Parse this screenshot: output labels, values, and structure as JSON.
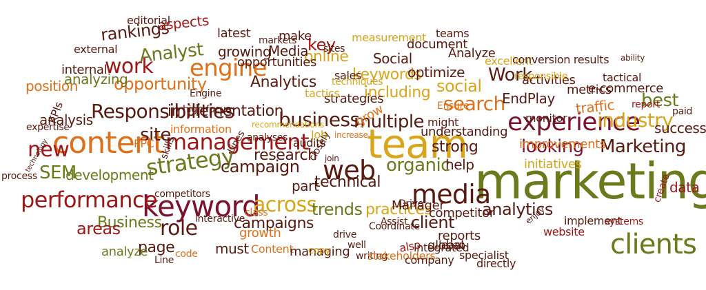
{
  "colors": {
    "dark_red": "#a01717",
    "olive": "#6b7a1c",
    "brown": "#5a1a10",
    "orange": "#e0711b",
    "gold": "#d9a51a",
    "maroon": "#7a1230"
  },
  "words": [
    {
      "text": "marketing",
      "c": "olive"
    },
    {
      "text": "team",
      "c": "gold"
    },
    {
      "text": "content",
      "c": "orange"
    },
    {
      "text": "keyword",
      "c": "maroon"
    },
    {
      "text": "experience",
      "c": "maroon"
    },
    {
      "text": "management",
      "c": "dark_red"
    },
    {
      "text": "strategy",
      "c": "olive"
    },
    {
      "text": "web",
      "c": "brown"
    },
    {
      "text": "media",
      "c": "brown"
    },
    {
      "text": "clients",
      "c": "olive"
    },
    {
      "text": "engine",
      "c": "orange"
    },
    {
      "text": "performance",
      "c": "dark_red"
    },
    {
      "text": "across",
      "c": "gold"
    },
    {
      "text": "search",
      "c": "orange"
    },
    {
      "text": "industry",
      "c": "gold"
    },
    {
      "text": "work",
      "c": "dark_red"
    },
    {
      "text": "Responsibilities",
      "c": "brown"
    },
    {
      "text": "Marketing",
      "c": "brown"
    },
    {
      "text": "new",
      "c": "dark_red"
    },
    {
      "text": "site",
      "c": "brown"
    },
    {
      "text": "best",
      "c": "olive"
    },
    {
      "text": "business",
      "c": "brown"
    },
    {
      "text": "implementation",
      "c": "brown"
    },
    {
      "text": "opportunity",
      "c": "orange"
    },
    {
      "text": "Analyst",
      "c": "olive"
    },
    {
      "text": "organic",
      "c": "olive"
    },
    {
      "text": "multiple",
      "c": "brown"
    },
    {
      "text": "social",
      "c": "gold"
    },
    {
      "text": "looking",
      "c": "maroon"
    },
    {
      "text": "Work",
      "c": "brown"
    },
    {
      "text": "role",
      "c": "brown"
    },
    {
      "text": "online",
      "c": "gold"
    },
    {
      "text": "including",
      "c": "gold"
    },
    {
      "text": "EndPlay",
      "c": "brown"
    },
    {
      "text": "traffic",
      "c": "orange"
    },
    {
      "text": "keywords",
      "c": "gold"
    },
    {
      "text": "campaign",
      "c": "brown"
    },
    {
      "text": "Business",
      "c": "olive"
    },
    {
      "text": "areas",
      "c": "dark_red"
    },
    {
      "text": "trends",
      "c": "olive"
    },
    {
      "text": "analytics",
      "c": "brown"
    },
    {
      "text": "SEM",
      "c": "olive"
    },
    {
      "text": "development",
      "c": "olive"
    },
    {
      "text": "growing",
      "c": "brown"
    },
    {
      "text": "Media",
      "c": "brown"
    },
    {
      "text": "key",
      "c": "dark_red"
    },
    {
      "text": "strong",
      "c": "brown"
    },
    {
      "text": "technical",
      "c": "brown"
    },
    {
      "text": "page",
      "c": "brown"
    },
    {
      "text": "Analytics",
      "c": "brown"
    },
    {
      "text": "research",
      "c": "brown"
    },
    {
      "text": "optimize",
      "c": "brown"
    },
    {
      "text": "rankings",
      "c": "brown"
    },
    {
      "text": "Social",
      "c": "brown"
    },
    {
      "text": "help",
      "c": "brown"
    },
    {
      "text": "success",
      "c": "brown"
    },
    {
      "text": "data",
      "c": "dark_red"
    },
    {
      "text": "client",
      "c": "brown"
    },
    {
      "text": "campaigns",
      "c": "brown"
    },
    {
      "text": "growth",
      "c": "orange"
    },
    {
      "text": "must",
      "c": "brown"
    },
    {
      "text": "part",
      "c": "brown"
    },
    {
      "text": "analysis",
      "c": "brown"
    },
    {
      "text": "position",
      "c": "orange"
    },
    {
      "text": "analyzing",
      "c": "olive"
    },
    {
      "text": "strategies",
      "c": "brown"
    },
    {
      "text": "understanding",
      "c": "brown"
    },
    {
      "text": "improvements",
      "c": "orange"
    },
    {
      "text": "initiatives",
      "c": "gold"
    },
    {
      "text": "practices",
      "c": "gold"
    },
    {
      "text": "Manager",
      "c": "brown"
    },
    {
      "text": "competitor",
      "c": "brown"
    },
    {
      "text": "reports",
      "c": "brown"
    },
    {
      "text": "global",
      "c": "brown"
    },
    {
      "text": "metrics",
      "c": "brown"
    },
    {
      "text": "e-commerce",
      "c": "brown"
    },
    {
      "text": "activities",
      "c": "brown"
    },
    {
      "text": "Analyze",
      "c": "brown"
    },
    {
      "text": "analyze",
      "c": "olive"
    },
    {
      "text": "document",
      "c": "brown"
    },
    {
      "text": "opportunities",
      "c": "brown"
    },
    {
      "text": "latest",
      "c": "brown"
    },
    {
      "text": "aspects",
      "c": "dark_red"
    },
    {
      "text": "make",
      "c": "brown"
    },
    {
      "text": "internal",
      "c": "brown"
    },
    {
      "text": "external",
      "c": "brown"
    },
    {
      "text": "editorial",
      "c": "brown"
    },
    {
      "text": "measurement",
      "c": "gold"
    },
    {
      "text": "teams",
      "c": "brown"
    },
    {
      "text": "markets",
      "c": "brown"
    },
    {
      "text": "sites",
      "c": "brown"
    },
    {
      "text": "sales",
      "c": "brown"
    },
    {
      "text": "techniques",
      "c": "gold"
    },
    {
      "text": "tactics",
      "c": "gold"
    },
    {
      "text": "excellent",
      "c": "gold"
    },
    {
      "text": "conversion results",
      "c": "brown"
    },
    {
      "text": "responsible",
      "c": "gold"
    },
    {
      "text": "tactical",
      "c": "brown"
    },
    {
      "text": "report",
      "c": "dark_red"
    },
    {
      "text": "paid",
      "c": "brown"
    },
    {
      "text": "ability",
      "c": "brown"
    },
    {
      "text": "monitor",
      "c": "brown"
    },
    {
      "text": "Ensure",
      "c": "orange"
    },
    {
      "text": "might",
      "c": "brown"
    },
    {
      "text": "grow",
      "c": "orange"
    },
    {
      "text": "Job",
      "c": "gold"
    },
    {
      "text": "increase",
      "c": "orange"
    },
    {
      "text": "audits",
      "c": "brown"
    },
    {
      "text": "recommendations",
      "c": "gold"
    },
    {
      "text": "analyses",
      "c": "brown"
    },
    {
      "text": "information",
      "c": "orange"
    },
    {
      "text": "high focus",
      "c": "brown"
    },
    {
      "text": "Engine",
      "c": "brown"
    },
    {
      "text": "expertise",
      "c": "brown"
    },
    {
      "text": "KPIs",
      "c": "brown"
    },
    {
      "text": "PPC",
      "c": "orange"
    },
    {
      "text": "skills",
      "c": "brown"
    },
    {
      "text": "Lines",
      "c": "brown"
    },
    {
      "text": "closely",
      "c": "brown"
    },
    {
      "text": "join",
      "c": "brown"
    },
    {
      "text": "process",
      "c": "brown"
    },
    {
      "text": "technology",
      "c": "brown"
    },
    {
      "text": "competitors",
      "c": "brown"
    },
    {
      "text": "interactive",
      "c": "brown"
    },
    {
      "text": "class",
      "c": "orange"
    },
    {
      "text": "code",
      "c": "orange"
    },
    {
      "text": "Line",
      "c": "brown"
    },
    {
      "text": "Content",
      "c": "orange"
    },
    {
      "text": "managing",
      "c": "brown"
    },
    {
      "text": "copy",
      "c": "gold"
    },
    {
      "text": "drive",
      "c": "brown"
    },
    {
      "text": "well",
      "c": "brown"
    },
    {
      "text": "Coordinate",
      "c": "brown"
    },
    {
      "text": "Drive",
      "c": "brown"
    },
    {
      "text": "Assist",
      "c": "brown"
    },
    {
      "text": "writing",
      "c": "brown"
    },
    {
      "text": "stakeholders",
      "c": "orange"
    },
    {
      "text": "company",
      "c": "brown"
    },
    {
      "text": "integrated",
      "c": "brown"
    },
    {
      "text": "learn",
      "c": "brown"
    },
    {
      "text": "specialist",
      "c": "brown"
    },
    {
      "text": "directly",
      "c": "brown"
    },
    {
      "text": "also",
      "c": "dark_red"
    },
    {
      "text": "website",
      "c": "dark_red"
    },
    {
      "text": "enjoy",
      "c": "brown"
    },
    {
      "text": "implement",
      "c": "brown"
    },
    {
      "text": "systems",
      "c": "dark_red"
    },
    {
      "text": "create",
      "c": "dark_red"
    }
  ]
}
